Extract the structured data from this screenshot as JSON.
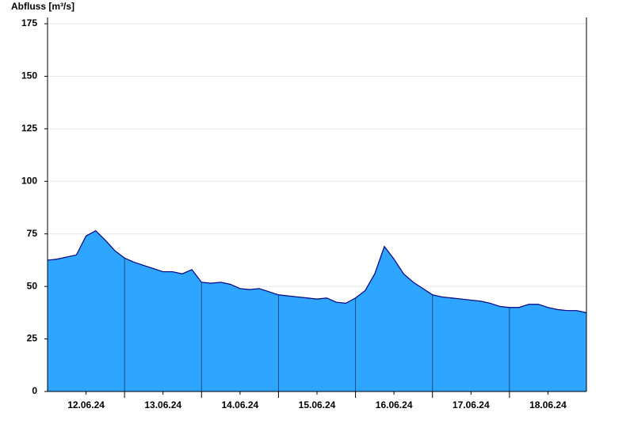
{
  "chart_data": {
    "type": "area",
    "y_axis_title": "Abfluss [m³/s]",
    "x": [
      0,
      3,
      6,
      9,
      12,
      15,
      18,
      21,
      24,
      27,
      30,
      33,
      36,
      39,
      42,
      45,
      48,
      51,
      54,
      57,
      60,
      63,
      66,
      69,
      72,
      75,
      78,
      81,
      84,
      87,
      90,
      93,
      96,
      99,
      102,
      105,
      108,
      111,
      114,
      117,
      120,
      123,
      126,
      129,
      132,
      135,
      138,
      141,
      144,
      147,
      150,
      153,
      156,
      159,
      162,
      165,
      168
    ],
    "series": [
      {
        "color": "#2ea6ff",
        "values": [
          62.5,
          63,
          64,
          65,
          74,
          76.5,
          72,
          67,
          63.5,
          61.5,
          60,
          58.5,
          57,
          57,
          56,
          58,
          52,
          51.5,
          52,
          51,
          49,
          48.5,
          49,
          47.5,
          46,
          45.5,
          45,
          44.5,
          44,
          44.5,
          42.5,
          42,
          44.5,
          48,
          56,
          69,
          63,
          56,
          52,
          49,
          46,
          45,
          44.5,
          44,
          43.5,
          43,
          42,
          40.5,
          40,
          40,
          41.5,
          41.5,
          40,
          39,
          38.5,
          38.5,
          37.5
        ]
      }
    ],
    "line_color": "#000080",
    "xlim": [
      0,
      168
    ],
    "xticks": [
      {
        "value": 12,
        "label": "12.06.24"
      },
      {
        "value": 36,
        "label": "13.06.24"
      },
      {
        "value": 60,
        "label": "14.06.24"
      },
      {
        "value": 84,
        "label": "15.06.24"
      },
      {
        "value": 108,
        "label": "16.06.24"
      },
      {
        "value": 132,
        "label": "17.06.24"
      },
      {
        "value": 156,
        "label": "18.06.24"
      }
    ],
    "day_boundaries": [
      24,
      48,
      72,
      96,
      120,
      144
    ],
    "ylim": [
      0,
      175
    ],
    "yticks": [
      0,
      25,
      50,
      75,
      100,
      125,
      150,
      175
    ],
    "grid": true
  }
}
